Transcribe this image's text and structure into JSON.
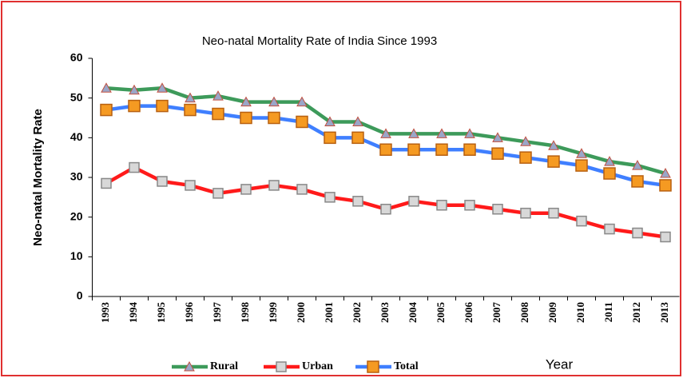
{
  "chart_data": {
    "type": "line",
    "title": "Neo-natal Mortality Rate of India Since 1993",
    "x_label": "Year",
    "y_label": "Neo-natal Mortality Rate",
    "categories": [
      "1993",
      "1994",
      "1995",
      "1996",
      "1997",
      "1998",
      "1999",
      "2000",
      "2001",
      "2002",
      "2003",
      "2004",
      "2005",
      "2006",
      "2007",
      "2008",
      "2009",
      "2010",
      "2011",
      "2012",
      "2013"
    ],
    "series": [
      {
        "name": "Rural",
        "color": "#3d9a5a",
        "values": [
          52.5,
          52,
          52.5,
          50,
          50.5,
          49,
          49,
          49,
          44,
          44,
          41,
          41,
          41,
          41,
          40,
          39,
          38,
          36,
          34,
          33,
          31
        ]
      },
      {
        "name": "Urban",
        "color": "#ff1a1a",
        "values": [
          28.5,
          32.5,
          29,
          28,
          26,
          27,
          28,
          27,
          25,
          24,
          22,
          24,
          23,
          23,
          22,
          21,
          21,
          19,
          17,
          16,
          15
        ]
      },
      {
        "name": "Total",
        "color": "#3f7fff",
        "values": [
          47,
          48,
          48,
          47,
          46,
          45,
          45,
          44,
          40,
          40,
          37,
          37,
          37,
          37,
          36,
          35,
          34,
          33,
          31,
          29,
          28
        ]
      }
    ],
    "ylim": [
      0,
      60
    ],
    "yticks": [
      0,
      10,
      20,
      30,
      40,
      50,
      60
    ],
    "grid": false
  }
}
